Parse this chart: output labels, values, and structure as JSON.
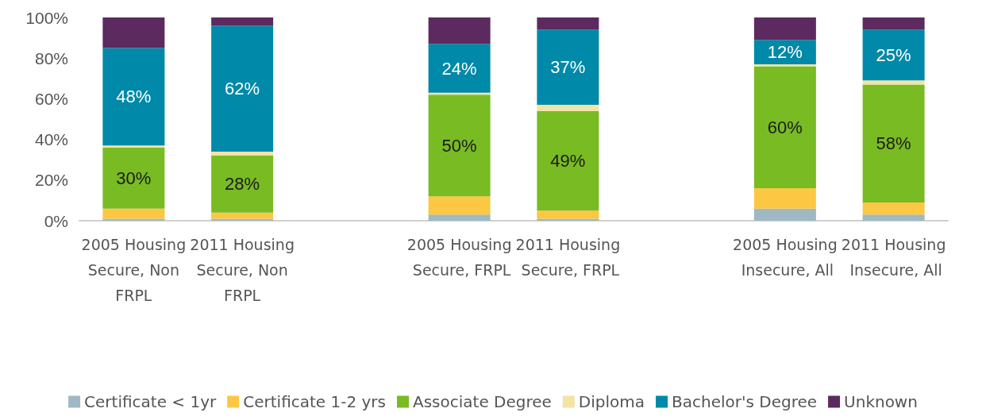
{
  "chart_data": {
    "type": "bar",
    "stacked": true,
    "categories": [
      "2005 Housing Secure, Non FRPL",
      "2011 Housing Secure, Non FRPL",
      null,
      "2005 Housing Secure, FRPL",
      "2011 Housing Secure, FRPL",
      null,
      "2005 Housing Insecure, All",
      "2011 Housing Insecure, All"
    ],
    "series": [
      {
        "name": "Certificate < 1yr",
        "color": "#9fb8c4",
        "values": [
          1,
          1,
          null,
          3,
          1,
          null,
          6,
          3
        ]
      },
      {
        "name": "Certificate 1-2 yrs",
        "color": "#fcc743",
        "values": [
          5,
          3,
          null,
          9,
          4,
          null,
          10,
          6
        ]
      },
      {
        "name": "Associate Degree",
        "color": "#78bb23",
        "values": [
          30,
          28,
          null,
          50,
          49,
          null,
          60,
          58
        ],
        "value_labels": [
          "30%",
          "28%",
          null,
          "50%",
          "49%",
          null,
          "60%",
          "58%"
        ]
      },
      {
        "name": "Diploma",
        "color": "#f3e3a5",
        "values": [
          1,
          2,
          null,
          1,
          3,
          null,
          1,
          2
        ]
      },
      {
        "name": "Bachelor's Degree",
        "color": "#0089a8",
        "values": [
          48,
          62,
          null,
          24,
          37,
          null,
          12,
          25
        ],
        "value_labels": [
          "48%",
          "62%",
          null,
          "24%",
          "37%",
          null,
          "12%",
          "25%"
        ]
      },
      {
        "name": "Unknown",
        "color": "#5c2a5e",
        "values": [
          15,
          4,
          null,
          13,
          6,
          null,
          11,
          6
        ]
      }
    ],
    "ylim": [
      0,
      100
    ],
    "yticks": [
      {
        "value": 0,
        "label": "0%"
      },
      {
        "value": 20,
        "label": "20%"
      },
      {
        "value": 40,
        "label": "40%"
      },
      {
        "value": 60,
        "label": "60%"
      },
      {
        "value": 80,
        "label": "80%"
      },
      {
        "value": 100,
        "label": "100%"
      }
    ],
    "grid": false,
    "legend": "bottom"
  }
}
